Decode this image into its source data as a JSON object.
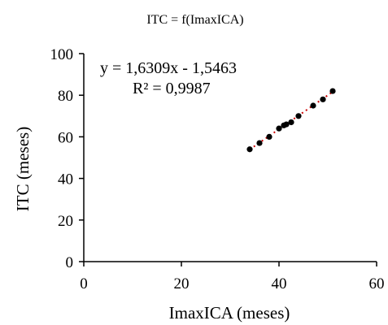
{
  "chart_data": {
    "type": "scatter",
    "title": "ITC = f(ImaxICA)",
    "xlabel": "ImaxICA  (meses)",
    "ylabel": "ITC  (meses)",
    "xlim": [
      0,
      60
    ],
    "ylim": [
      0,
      100
    ],
    "x_ticks": [
      "0",
      "20",
      "40",
      "60"
    ],
    "y_ticks": [
      "0",
      "20",
      "40",
      "60",
      "80",
      "100"
    ],
    "grid": false,
    "legend": "none",
    "marker_color": "#000000",
    "trendline_color": "#cc0000",
    "trendline": {
      "slope": 1.6309,
      "intercept": -1.5463,
      "equation_text": "y = 1,6309x - 1,5463",
      "r2_text": "R² = 0,9987"
    },
    "series": [
      {
        "x": [
          34,
          36,
          38,
          40,
          41,
          41.5,
          42.5,
          44,
          47,
          49,
          51
        ],
        "y": [
          54,
          57,
          60,
          64,
          65.5,
          66,
          67,
          70,
          75,
          78,
          82
        ]
      }
    ]
  }
}
